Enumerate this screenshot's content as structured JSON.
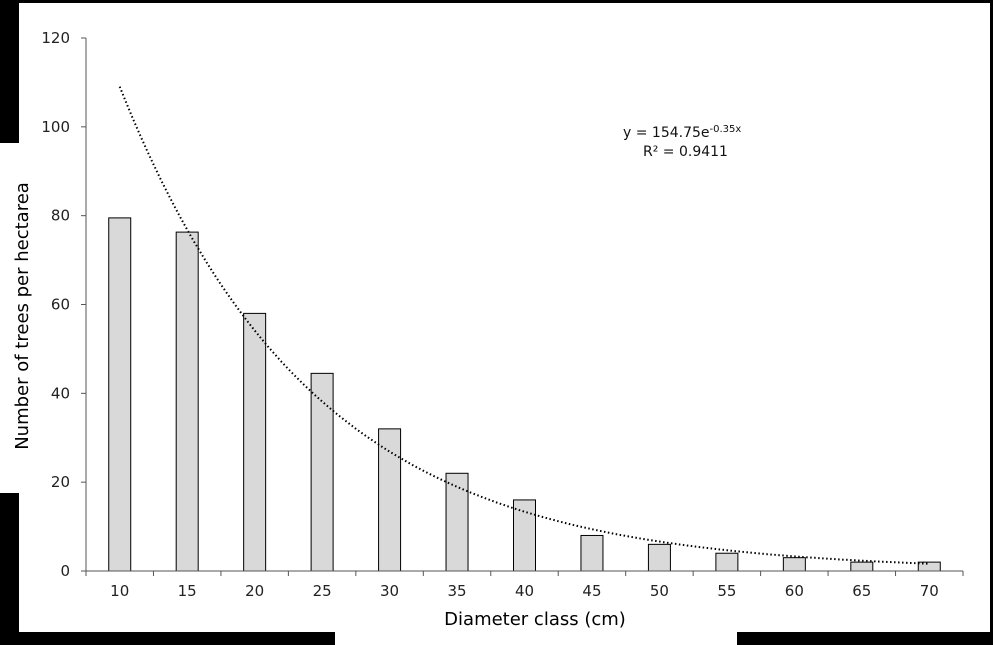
{
  "chart_data": {
    "type": "bar",
    "title": "",
    "xlabel": "Diameter class (cm)",
    "ylabel": "Number of trees per hectarea",
    "categories": [
      "10",
      "15",
      "20",
      "25",
      "30",
      "35",
      "40",
      "45",
      "50",
      "55",
      "60",
      "65",
      "70"
    ],
    "values": [
      79.5,
      76.3,
      58.0,
      44.5,
      32.0,
      22.0,
      16.0,
      8.0,
      6.0,
      4.0,
      3.0,
      2.0,
      2.0
    ],
    "ylim": [
      0,
      120
    ],
    "yticks": [
      "0",
      "20",
      "40",
      "60",
      "80",
      "100",
      "120"
    ],
    "bar_fill": "#d9d9d9",
    "bar_stroke": "#000000",
    "trendline": {
      "type": "exponential",
      "style": "dotted",
      "coefficient": 154.75,
      "exponent": -0.35,
      "equation_prefix": "y = 154.75e",
      "equation_exponent": "-0.35x",
      "r_squared_label": "R² = 0.9411"
    },
    "grid": false,
    "legend": "none"
  }
}
